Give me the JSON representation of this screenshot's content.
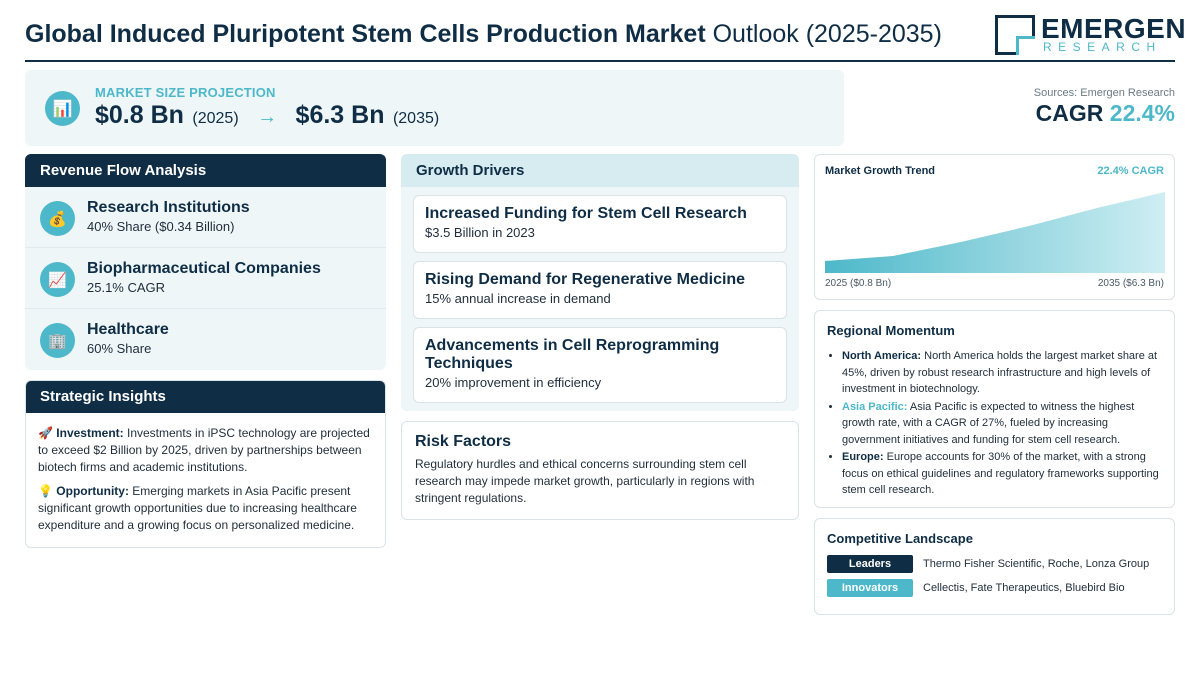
{
  "header": {
    "title_bold": "Global Induced Pluripotent Stem Cells Production Market",
    "title_rest": "Outlook (2025-2035)",
    "logo_name": "EMERGEN",
    "logo_sub": "RESEARCH"
  },
  "projection": {
    "icon": "bar-chart-icon",
    "label": "MARKET SIZE PROJECTION",
    "start_value": "$0.8 Bn",
    "start_year": "(2025)",
    "arrow": "→",
    "end_value": "$6.3 Bn",
    "end_year": "(2035)"
  },
  "summary": {
    "sources": "Sources: Emergen Research",
    "cagr_label": "CAGR",
    "cagr_value": "22.4%"
  },
  "revenue": {
    "heading": "Revenue Flow Analysis",
    "items": [
      {
        "icon": "money-bag-icon",
        "glyph": "💰",
        "title": "Research Institutions",
        "subtitle": "40% Share ($0.34 Billion)"
      },
      {
        "icon": "trend-chart-icon",
        "glyph": "📈",
        "title": "Biopharmaceutical Companies",
        "subtitle": "25.1% CAGR"
      },
      {
        "icon": "hospital-icon",
        "glyph": "🏢",
        "title": "Healthcare",
        "subtitle": "60% Share"
      }
    ]
  },
  "insights": {
    "heading": "Strategic Insights",
    "items": [
      {
        "icon": "rocket-icon",
        "glyph": "🚀",
        "label": "Investment:",
        "text": "Investments in iPSC technology are projected to exceed $2 Billion by 2025, driven by partnerships between biotech firms and academic institutions."
      },
      {
        "icon": "lightbulb-icon",
        "glyph": "💡",
        "label": "Opportunity:",
        "text": "Emerging markets in Asia Pacific present significant growth opportunities due to increasing healthcare expenditure and a growing focus on personalized medicine."
      }
    ]
  },
  "drivers": {
    "heading": "Growth Drivers",
    "items": [
      {
        "title": "Increased Funding for Stem Cell Research",
        "subtitle": "$3.5 Billion in 2023"
      },
      {
        "title": "Rising Demand for Regenerative Medicine",
        "subtitle": "15% annual increase in demand"
      },
      {
        "title": "Advancements in Cell Reprogramming Techniques",
        "subtitle": "20% improvement in efficiency"
      }
    ]
  },
  "risk": {
    "heading": "Risk Factors",
    "text": "Regulatory hurdles and ethical concerns surrounding stem cell research may impede market growth, particularly in regions with stringent regulations."
  },
  "trend": {
    "title": "Market Growth Trend",
    "cagr": "22.4% CAGR",
    "start_label": "2025 ($0.8 Bn)",
    "end_label": "2035 ($6.3 Bn)"
  },
  "regional": {
    "heading": "Regional Momentum",
    "items": [
      {
        "region": "North America:",
        "text": "North America holds the largest market share at 45%, driven by robust research infrastructure and high levels of investment in biotechnology."
      },
      {
        "region": "Asia Pacific:",
        "text": "Asia Pacific is expected to witness the highest growth rate, with a CAGR of 27%, fueled by increasing government initiatives and funding for stem cell research."
      },
      {
        "region": "Europe:",
        "text": "Europe accounts for 30% of the market, with a strong focus on ethical guidelines and regulatory frameworks supporting stem cell research."
      }
    ]
  },
  "competitive": {
    "heading": "Competitive Landscape",
    "rows": [
      {
        "badge": "Leaders",
        "text": "Thermo Fisher Scientific, Roche, Lonza Group"
      },
      {
        "badge": "Innovators",
        "text": "Cellectis, Fate Therapeutics, Bluebird Bio"
      }
    ]
  },
  "colors": {
    "navy": "#0f2d45",
    "teal": "#4db8c9",
    "panel": "#eef6f8"
  }
}
